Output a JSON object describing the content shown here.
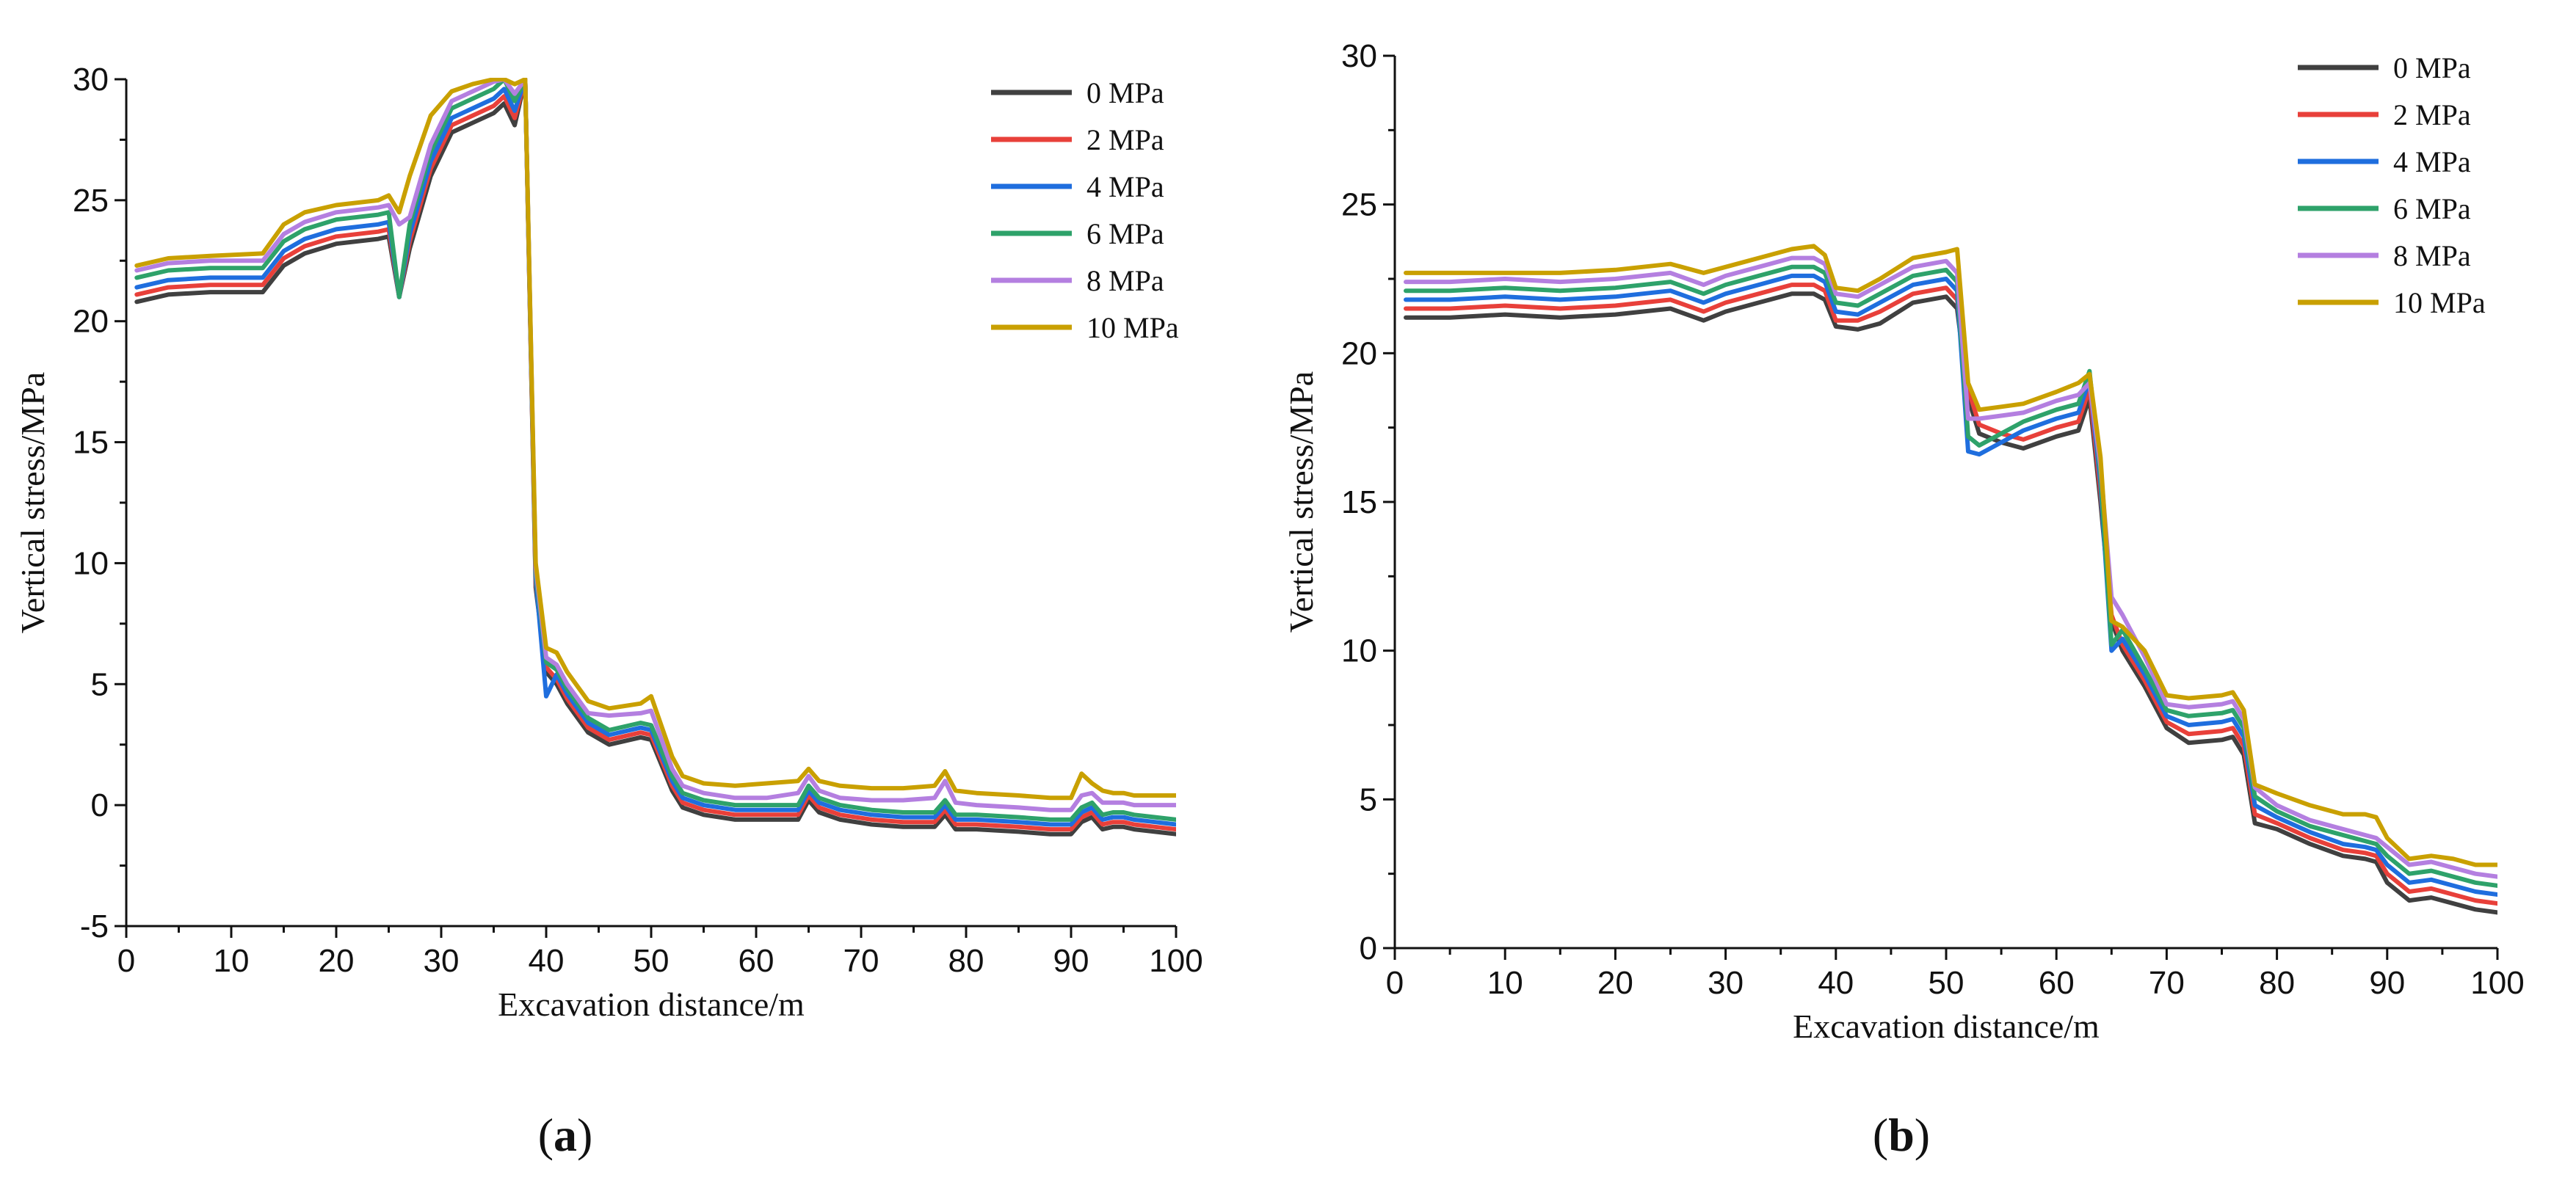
{
  "figure": {
    "panel_a_label": "a",
    "panel_b_label": "b"
  },
  "chart_data": [
    {
      "type": "line",
      "panel": "a",
      "title": "",
      "xlabel": "Excavation distance/m",
      "ylabel": "Vertical stress/MPa",
      "xlim": [
        0,
        100
      ],
      "ylim": [
        -5,
        30
      ],
      "xticks": [
        0,
        10,
        20,
        30,
        40,
        50,
        60,
        70,
        80,
        90,
        100
      ],
      "yticks": [
        -5,
        0,
        5,
        10,
        15,
        20,
        25,
        30
      ],
      "legend_position": "top-right",
      "x": [
        1,
        4,
        8,
        13,
        15,
        17,
        20,
        24,
        25,
        26,
        27,
        29,
        31,
        33,
        35,
        36,
        37,
        38,
        39,
        40,
        41,
        42,
        44,
        46,
        49,
        50,
        52,
        53,
        55,
        58,
        61,
        64,
        65,
        66,
        68,
        71,
        74,
        77,
        78,
        79,
        81,
        85,
        88,
        90,
        91,
        92,
        93,
        94,
        95,
        96,
        98,
        100
      ],
      "series": [
        {
          "name": "0 MPa",
          "color": "#404040",
          "values": [
            20.8,
            21.1,
            21.2,
            21.2,
            22.3,
            22.8,
            23.2,
            23.4,
            23.5,
            21.0,
            23.0,
            26.0,
            27.8,
            28.2,
            28.6,
            29.0,
            28.1,
            30.0,
            9.0,
            5.5,
            5.0,
            4.2,
            3.0,
            2.5,
            2.8,
            2.7,
            0.6,
            -0.1,
            -0.4,
            -0.6,
            -0.6,
            -0.6,
            0.2,
            -0.3,
            -0.6,
            -0.8,
            -0.9,
            -0.9,
            -0.4,
            -1.0,
            -1.0,
            -1.1,
            -1.2,
            -1.2,
            -0.7,
            -0.5,
            -1.0,
            -0.9,
            -0.9,
            -1.0,
            -1.1,
            -1.2
          ]
        },
        {
          "name": "2 MPa",
          "color": "#e8403a",
          "values": [
            21.1,
            21.4,
            21.5,
            21.5,
            22.6,
            23.1,
            23.5,
            23.7,
            23.8,
            21.0,
            23.3,
            26.3,
            28.1,
            28.5,
            28.9,
            29.3,
            28.4,
            30.0,
            9.2,
            5.7,
            5.2,
            4.4,
            3.2,
            2.7,
            3.0,
            2.9,
            0.8,
            0.1,
            -0.2,
            -0.4,
            -0.4,
            -0.4,
            0.4,
            -0.1,
            -0.4,
            -0.6,
            -0.7,
            -0.7,
            -0.2,
            -0.8,
            -0.8,
            -0.9,
            -1.0,
            -1.0,
            -0.5,
            -0.3,
            -0.8,
            -0.7,
            -0.7,
            -0.8,
            -0.9,
            -1.0
          ]
        },
        {
          "name": "4 MPa",
          "color": "#1f6ede",
          "values": [
            21.4,
            21.7,
            21.8,
            21.8,
            22.9,
            23.4,
            23.8,
            24.0,
            24.1,
            21.0,
            23.6,
            26.6,
            28.4,
            28.8,
            29.2,
            29.6,
            28.7,
            30.0,
            9.4,
            4.5,
            5.4,
            4.6,
            3.4,
            2.9,
            3.2,
            3.1,
            1.0,
            0.3,
            0.0,
            -0.2,
            -0.2,
            -0.2,
            0.6,
            0.1,
            -0.2,
            -0.4,
            -0.5,
            -0.5,
            0.0,
            -0.6,
            -0.6,
            -0.7,
            -0.8,
            -0.8,
            -0.3,
            -0.1,
            -0.6,
            -0.5,
            -0.5,
            -0.6,
            -0.7,
            -0.8
          ]
        },
        {
          "name": "6 MPa",
          "color": "#2ea26a",
          "values": [
            21.8,
            22.1,
            22.2,
            22.2,
            23.3,
            23.8,
            24.2,
            24.4,
            24.5,
            21.0,
            24.0,
            27.0,
            28.8,
            29.2,
            29.6,
            30.0,
            29.1,
            30.0,
            9.6,
            5.9,
            5.6,
            4.8,
            3.6,
            3.1,
            3.4,
            3.3,
            1.2,
            0.5,
            0.2,
            0.0,
            0.0,
            0.0,
            0.8,
            0.3,
            0.0,
            -0.2,
            -0.3,
            -0.3,
            0.2,
            -0.4,
            -0.4,
            -0.5,
            -0.6,
            -0.6,
            -0.1,
            0.1,
            -0.4,
            -0.3,
            -0.3,
            -0.4,
            -0.5,
            -0.6
          ]
        },
        {
          "name": "8 MPa",
          "color": "#b47fe0",
          "values": [
            22.1,
            22.4,
            22.5,
            22.5,
            23.6,
            24.1,
            24.5,
            24.7,
            24.8,
            24.0,
            24.3,
            27.3,
            29.1,
            29.5,
            29.9,
            30.0,
            29.4,
            30.0,
            9.8,
            6.1,
            5.8,
            5.0,
            3.8,
            3.7,
            3.8,
            3.9,
            1.5,
            0.8,
            0.5,
            0.3,
            0.3,
            0.5,
            1.2,
            0.6,
            0.3,
            0.2,
            0.2,
            0.3,
            1.0,
            0.1,
            0.0,
            -0.1,
            -0.2,
            -0.2,
            0.4,
            0.5,
            0.1,
            0.1,
            0.1,
            0.0,
            0.0,
            0.0
          ]
        },
        {
          "name": "10 MPa",
          "color": "#c9a000",
          "values": [
            22.3,
            22.6,
            22.7,
            22.8,
            24.0,
            24.5,
            24.8,
            25.0,
            25.2,
            24.5,
            26.0,
            28.5,
            29.5,
            29.8,
            30.0,
            30.0,
            29.8,
            30.0,
            10.0,
            6.5,
            6.3,
            5.5,
            4.3,
            4.0,
            4.2,
            4.5,
            2.0,
            1.2,
            0.9,
            0.8,
            0.9,
            1.0,
            1.5,
            1.0,
            0.8,
            0.7,
            0.7,
            0.8,
            1.4,
            0.6,
            0.5,
            0.4,
            0.3,
            0.3,
            1.3,
            0.9,
            0.6,
            0.5,
            0.5,
            0.4,
            0.4,
            0.4
          ]
        }
      ]
    },
    {
      "type": "line",
      "panel": "b",
      "title": "",
      "xlabel": "Excavation distance/m",
      "ylabel": "Vertical stress/MPa",
      "xlim": [
        0,
        100
      ],
      "ylim": [
        0,
        30
      ],
      "xticks": [
        0,
        10,
        20,
        30,
        40,
        50,
        60,
        70,
        80,
        90,
        100
      ],
      "yticks": [
        0,
        5,
        10,
        15,
        20,
        25,
        30
      ],
      "legend_position": "top-right",
      "x": [
        1,
        5,
        10,
        15,
        20,
        25,
        28,
        30,
        33,
        36,
        38,
        39,
        40,
        42,
        44,
        47,
        50,
        51,
        52,
        53,
        55,
        57,
        60,
        62,
        63,
        64,
        65,
        66,
        68,
        70,
        72,
        75,
        76,
        77,
        78,
        80,
        83,
        86,
        88,
        89,
        90,
        92,
        94,
        96,
        98,
        100
      ],
      "series": [
        {
          "name": "0 MPa",
          "color": "#404040",
          "values": [
            21.2,
            21.2,
            21.3,
            21.2,
            21.3,
            21.5,
            21.1,
            21.4,
            21.7,
            22.0,
            22.0,
            21.8,
            20.9,
            20.8,
            21.0,
            21.7,
            21.9,
            21.5,
            18.5,
            17.3,
            17.0,
            16.8,
            17.2,
            17.4,
            18.5,
            15.0,
            11.0,
            10.0,
            8.8,
            7.4,
            6.9,
            7.0,
            7.1,
            6.5,
            4.2,
            4.0,
            3.5,
            3.1,
            3.0,
            2.9,
            2.2,
            1.6,
            1.7,
            1.5,
            1.3,
            1.2
          ]
        },
        {
          "name": "2 MPa",
          "color": "#e8403a",
          "values": [
            21.5,
            21.5,
            21.6,
            21.5,
            21.6,
            21.8,
            21.4,
            21.7,
            22.0,
            22.3,
            22.3,
            22.1,
            21.1,
            21.1,
            21.4,
            22.0,
            22.2,
            21.8,
            18.8,
            17.6,
            17.3,
            17.1,
            17.5,
            17.7,
            18.8,
            15.3,
            11.2,
            10.2,
            9.0,
            7.6,
            7.2,
            7.3,
            7.4,
            6.8,
            4.5,
            4.2,
            3.7,
            3.3,
            3.2,
            3.1,
            2.5,
            1.9,
            2.0,
            1.8,
            1.6,
            1.5
          ]
        },
        {
          "name": "4 MPa",
          "color": "#1f6ede",
          "values": [
            21.8,
            21.8,
            21.9,
            21.8,
            21.9,
            22.1,
            21.7,
            22.0,
            22.3,
            22.6,
            22.6,
            22.4,
            21.4,
            21.3,
            21.7,
            22.3,
            22.5,
            22.1,
            16.7,
            16.6,
            17.0,
            17.4,
            17.8,
            18.0,
            19.1,
            15.6,
            10.0,
            10.4,
            9.2,
            7.8,
            7.5,
            7.6,
            7.7,
            7.1,
            4.8,
            4.4,
            3.9,
            3.5,
            3.4,
            3.3,
            2.8,
            2.2,
            2.3,
            2.1,
            1.9,
            1.8
          ]
        },
        {
          "name": "6 MPa",
          "color": "#2ea26a",
          "values": [
            22.1,
            22.1,
            22.2,
            22.1,
            22.2,
            22.4,
            22.0,
            22.3,
            22.6,
            22.9,
            22.9,
            22.7,
            21.7,
            21.6,
            22.0,
            22.6,
            22.8,
            22.4,
            17.2,
            16.9,
            17.3,
            17.7,
            18.1,
            18.3,
            19.4,
            15.9,
            10.2,
            10.7,
            9.4,
            8.0,
            7.8,
            7.9,
            8.0,
            7.4,
            5.1,
            4.6,
            4.1,
            3.8,
            3.6,
            3.5,
            3.1,
            2.5,
            2.6,
            2.4,
            2.2,
            2.1
          ]
        },
        {
          "name": "8 MPa",
          "color": "#b47fe0",
          "values": [
            22.4,
            22.4,
            22.5,
            22.4,
            22.5,
            22.7,
            22.3,
            22.6,
            22.9,
            23.2,
            23.2,
            23.0,
            22.0,
            21.9,
            22.3,
            22.9,
            23.1,
            22.7,
            17.8,
            17.8,
            17.9,
            18.0,
            18.4,
            18.6,
            19.0,
            16.2,
            11.8,
            11.2,
            9.8,
            8.2,
            8.1,
            8.2,
            8.3,
            7.7,
            5.4,
            4.8,
            4.3,
            4.0,
            3.8,
            3.7,
            3.4,
            2.8,
            2.9,
            2.7,
            2.5,
            2.4
          ]
        },
        {
          "name": "10 MPa",
          "color": "#c9a000",
          "values": [
            22.7,
            22.7,
            22.7,
            22.7,
            22.8,
            23.0,
            22.7,
            22.9,
            23.2,
            23.5,
            23.6,
            23.3,
            22.2,
            22.1,
            22.5,
            23.2,
            23.4,
            23.5,
            19.0,
            18.1,
            18.2,
            18.3,
            18.7,
            19.0,
            19.3,
            16.5,
            11.0,
            10.8,
            10.0,
            8.5,
            8.4,
            8.5,
            8.6,
            8.0,
            5.5,
            5.2,
            4.8,
            4.5,
            4.5,
            4.4,
            3.7,
            3.0,
            3.1,
            3.0,
            2.8,
            2.8
          ]
        }
      ]
    }
  ]
}
